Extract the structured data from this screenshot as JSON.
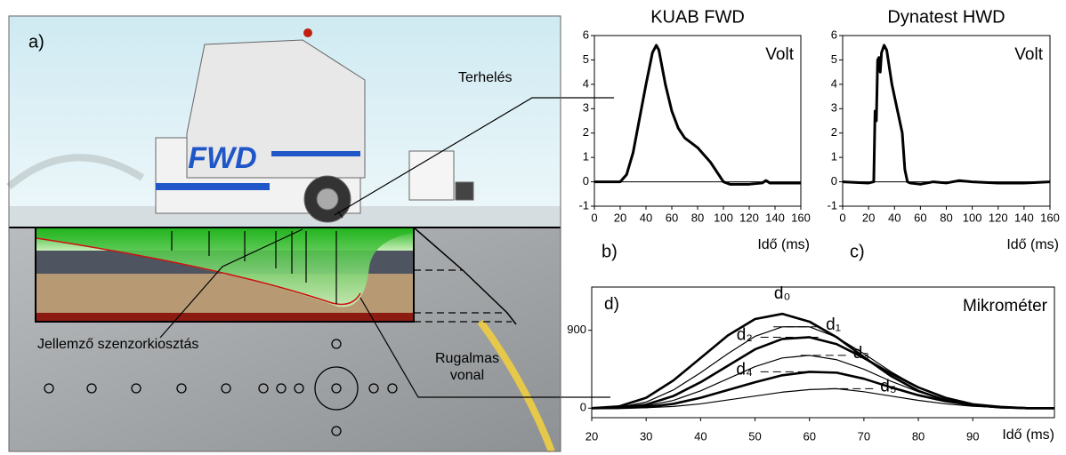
{
  "illustration": {
    "panel": "a)",
    "truck_label": "FWD",
    "load": "Terhelés",
    "sensors": "Jellemző szenzorkiosztás",
    "deflection": [
      "Rugalmas",
      "vonal"
    ]
  },
  "chart_data": [
    {
      "type": "line",
      "title": "KUAB FWD",
      "panel": "b)",
      "annotation": "Volt",
      "x_label": "Idő (ms)",
      "x": [
        0,
        20,
        25,
        30,
        35,
        40,
        45,
        48,
        50,
        55,
        60,
        65,
        70,
        80,
        90,
        100,
        105,
        120,
        130,
        133,
        136,
        150,
        160
      ],
      "series": [
        {
          "color": "#000000",
          "values": [
            0,
            0,
            0.3,
            1.2,
            2.6,
            4,
            5.3,
            5.6,
            5.4,
            4,
            2.9,
            2.2,
            1.8,
            1.4,
            0.8,
            0,
            -0.1,
            -0.1,
            -0.05,
            0.05,
            -0.05,
            -0.05,
            -0.05
          ]
        }
      ],
      "xlim": [
        0,
        160
      ],
      "ylim": [
        -1,
        6
      ],
      "xticks": [
        0,
        20,
        40,
        60,
        80,
        100,
        120,
        140,
        160
      ],
      "yticks": [
        -1,
        0,
        1,
        2,
        3,
        4,
        5,
        6
      ],
      "zero_line": true
    },
    {
      "type": "line",
      "title": "Dynatest HWD",
      "panel": "c)",
      "annotation": "Volt",
      "x_label": "Idő (ms)",
      "x": [
        0,
        20,
        24,
        25,
        26,
        27,
        28,
        29,
        30,
        32,
        34,
        38,
        42,
        46,
        48,
        50,
        52,
        60,
        70,
        80,
        90,
        100,
        120,
        140,
        160
      ],
      "series": [
        {
          "color": "#000000",
          "values": [
            0,
            -0.05,
            0,
            2.9,
            2.5,
            5,
            5.1,
            4.5,
            5.3,
            5.6,
            5.4,
            4,
            3,
            2,
            0.5,
            0,
            -0.05,
            -0.1,
            0,
            -0.05,
            0.05,
            0,
            -0.05,
            -0.05,
            0
          ]
        }
      ],
      "xlim": [
        0,
        160
      ],
      "ylim": [
        -1,
        6
      ],
      "xticks": [
        0,
        20,
        40,
        60,
        80,
        100,
        120,
        140,
        160
      ],
      "yticks": [
        -1,
        0,
        1,
        2,
        3,
        4,
        5,
        6
      ],
      "zero_line": true
    },
    {
      "type": "line",
      "panel": "d)",
      "annotation": "Mikrométer",
      "x_label": "Idő (ms)",
      "x": [
        20,
        25,
        30,
        35,
        40,
        45,
        50,
        55,
        60,
        65,
        70,
        75,
        80,
        85,
        90,
        95,
        100,
        105
      ],
      "series": [
        {
          "name": "d₀",
          "color": "#000000",
          "width": 2.6,
          "values": [
            0,
            20,
            120,
            320,
            580,
            840,
            1030,
            1090,
            1000,
            820,
            590,
            370,
            200,
            90,
            35,
            10,
            0,
            0
          ]
        },
        {
          "name": "d₁",
          "color": "#000000",
          "width": 1.2,
          "values": [
            0,
            10,
            70,
            210,
            410,
            630,
            830,
            940,
            940,
            820,
            630,
            420,
            240,
            110,
            40,
            12,
            0,
            0
          ]
        },
        {
          "name": "d₂",
          "color": "#000000",
          "width": 2.6,
          "values": [
            0,
            5,
            40,
            140,
            300,
            490,
            680,
            800,
            820,
            740,
            580,
            400,
            240,
            120,
            45,
            15,
            0,
            0
          ]
        },
        {
          "name": "d₃",
          "color": "#000000",
          "width": 1.2,
          "values": [
            0,
            3,
            25,
            90,
            200,
            340,
            480,
            580,
            610,
            560,
            450,
            310,
            190,
            95,
            40,
            12,
            0,
            0
          ]
        },
        {
          "name": "d₄",
          "color": "#000000",
          "width": 2.6,
          "values": [
            0,
            2,
            12,
            50,
            120,
            210,
            300,
            380,
            420,
            410,
            340,
            240,
            150,
            80,
            35,
            10,
            0,
            0
          ]
        },
        {
          "name": "d₅",
          "color": "#000000",
          "width": 1.2,
          "values": [
            0,
            1,
            5,
            20,
            50,
            95,
            140,
            185,
            215,
            225,
            190,
            140,
            90,
            50,
            22,
            8,
            0,
            0
          ]
        }
      ],
      "xlim": [
        20,
        105
      ],
      "ylim": [
        -110,
        1400
      ],
      "xticks": [
        20,
        30,
        40,
        50,
        60,
        70,
        80,
        90
      ],
      "yticks": [
        0,
        900
      ],
      "zero_line": false
    }
  ]
}
